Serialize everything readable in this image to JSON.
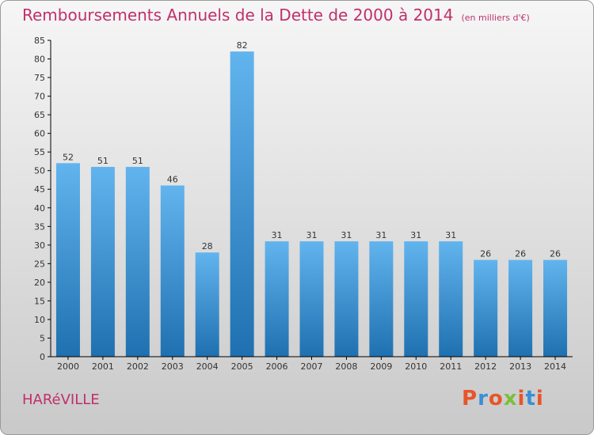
{
  "title": "Remboursements Annuels de la Dette de 2000 à 2014",
  "subtitle": "(en milliers d'€)",
  "city": "HARéVILLE",
  "logo": {
    "text": "Proxiti",
    "colors": [
      "#e8542a",
      "#3a8fd6",
      "#e8542a",
      "#7bbf3a",
      "#e8542a",
      "#3a8fd6",
      "#e8542a"
    ]
  },
  "colors": {
    "title": "#c0306a",
    "bar_light": "#62b4ee",
    "bar_dark": "#1f70b0",
    "axis": "#000000"
  },
  "chart_data": {
    "type": "bar",
    "categories": [
      "2000",
      "2001",
      "2002",
      "2003",
      "2004",
      "2005",
      "2006",
      "2007",
      "2008",
      "2009",
      "2010",
      "2011",
      "2012",
      "2013",
      "2014"
    ],
    "values": [
      52,
      51,
      51,
      46,
      28,
      82,
      31,
      31,
      31,
      31,
      31,
      31,
      26,
      26,
      26
    ],
    "value_labels": [
      "52",
      "51",
      "51",
      "46",
      "28",
      "82",
      "31",
      "31",
      "31",
      "31",
      "31",
      "31",
      "26",
      "26",
      "26"
    ],
    "ylim": [
      0,
      85
    ],
    "yticks": [
      0,
      5,
      10,
      15,
      20,
      25,
      30,
      35,
      40,
      45,
      50,
      55,
      60,
      65,
      70,
      75,
      80,
      85
    ],
    "grid": false
  }
}
